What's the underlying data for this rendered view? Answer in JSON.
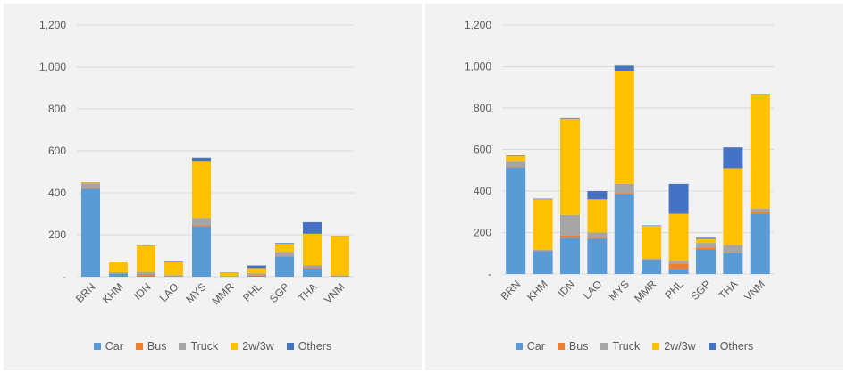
{
  "colors": {
    "Car": "#5b9bd5",
    "Bus": "#ed7d31",
    "Truck": "#a5a5a5",
    "2w/3w": "#ffc000",
    "Others": "#4472c4"
  },
  "chart_data": [
    {
      "type": "bar",
      "stacked": true,
      "categories": [
        "BRN",
        "KHM",
        "IDN",
        "LAO",
        "MYS",
        "MMR",
        "PHL",
        "SGP",
        "THA",
        "VNM"
      ],
      "ylim": [
        0,
        1200
      ],
      "yticks": [
        0,
        200,
        400,
        600,
        800,
        1000,
        1200
      ],
      "ytick_labels": [
        "-",
        "200",
        "400",
        "600",
        "800",
        "1,000",
        "1,200"
      ],
      "legend_position": "bottom",
      "grid": true,
      "series": [
        {
          "name": "Car",
          "values": [
            420,
            15,
            5,
            3,
            240,
            2,
            5,
            95,
            40,
            3
          ]
        },
        {
          "name": "Bus",
          "values": [
            3,
            1,
            8,
            1,
            5,
            1,
            3,
            3,
            5,
            1
          ]
        },
        {
          "name": "Truck",
          "values": [
            22,
            5,
            10,
            3,
            35,
            2,
            8,
            20,
            10,
            2
          ]
        },
        {
          "name": "2w/3w",
          "values": [
            5,
            50,
            125,
            65,
            272,
            15,
            25,
            40,
            150,
            188
          ]
        },
        {
          "name": "Others",
          "values": [
            1,
            1,
            1,
            3,
            15,
            1,
            12,
            3,
            55,
            1
          ]
        }
      ]
    },
    {
      "type": "bar",
      "stacked": true,
      "categories": [
        "BRN",
        "KHM",
        "IDN",
        "LAO",
        "MYS",
        "MMR",
        "PHL",
        "SGP",
        "THA",
        "VNM"
      ],
      "ylim": [
        0,
        1200
      ],
      "yticks": [
        0,
        200,
        400,
        600,
        800,
        1000,
        1200
      ],
      "ytick_labels": [
        "-",
        "200",
        "400",
        "600",
        "800",
        "1,000",
        "1,200"
      ],
      "legend_position": "bottom",
      "grid": true,
      "series": [
        {
          "name": "Car",
          "values": [
            515,
            110,
            175,
            170,
            385,
            70,
            25,
            120,
            100,
            290
          ]
        },
        {
          "name": "Bus",
          "values": [
            3,
            2,
            10,
            5,
            5,
            2,
            25,
            5,
            5,
            10
          ]
        },
        {
          "name": "Truck",
          "values": [
            27,
            5,
            100,
            25,
            45,
            3,
            15,
            25,
            35,
            15
          ]
        },
        {
          "name": "2w/3w",
          "values": [
            25,
            243,
            465,
            160,
            545,
            158,
            225,
            20,
            370,
            550
          ]
        },
        {
          "name": "Others",
          "values": [
            2,
            3,
            3,
            40,
            25,
            2,
            145,
            5,
            100,
            2
          ]
        }
      ]
    }
  ]
}
